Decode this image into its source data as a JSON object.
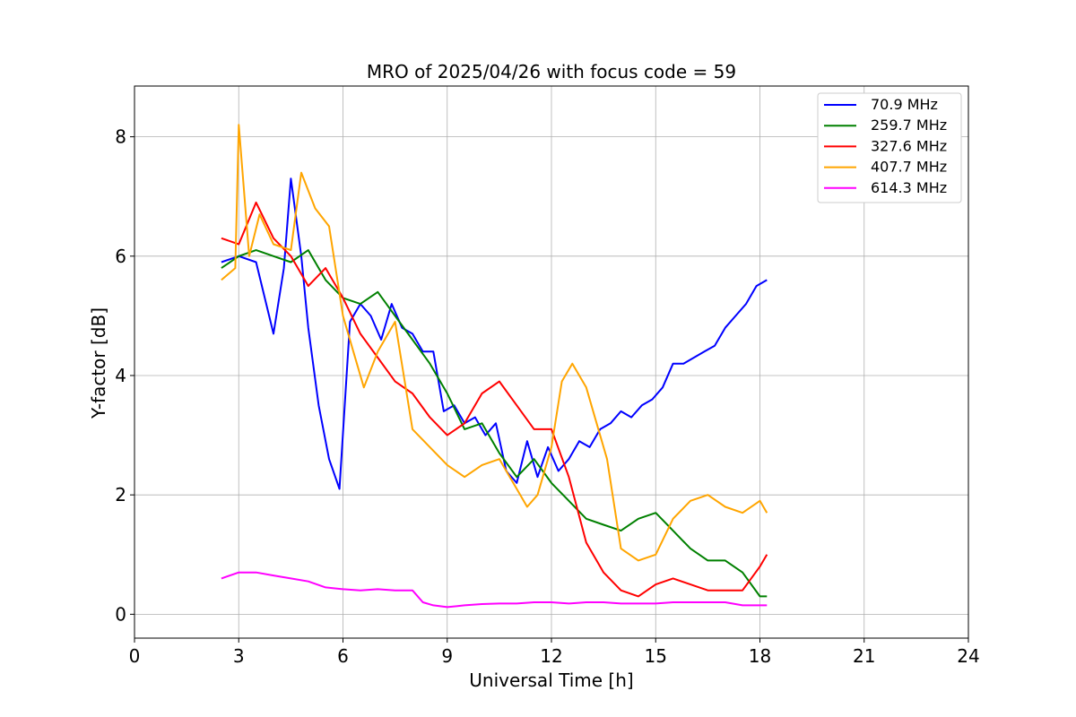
{
  "chart_data": {
    "type": "line",
    "title": "MRO of 2025/04/26 with focus code = 59",
    "xlabel": "Universal Time [h]",
    "ylabel": "Y-factor [dB]",
    "xlim": [
      0,
      24
    ],
    "ylim": [
      -0.4,
      8.85
    ],
    "xticks": [
      0,
      3,
      6,
      9,
      12,
      15,
      18,
      21,
      24
    ],
    "yticks": [
      0,
      2,
      4,
      6,
      8
    ],
    "grid": true,
    "legend_position": "top-right",
    "series": [
      {
        "name": " 70.9 MHz",
        "color": "#0000ff",
        "x": [
          2.5,
          3.0,
          3.5,
          4.0,
          4.3,
          4.5,
          4.8,
          5.0,
          5.3,
          5.6,
          5.9,
          6.2,
          6.5,
          6.8,
          7.1,
          7.4,
          7.7,
          8.0,
          8.3,
          8.6,
          8.9,
          9.2,
          9.5,
          9.8,
          10.1,
          10.4,
          10.7,
          11.0,
          11.3,
          11.6,
          11.9,
          12.2,
          12.5,
          12.8,
          13.1,
          13.4,
          13.7,
          14.0,
          14.3,
          14.6,
          14.9,
          15.2,
          15.5,
          15.8,
          16.1,
          16.4,
          16.7,
          17.0,
          17.3,
          17.6,
          17.9,
          18.2
        ],
        "y": [
          5.9,
          6.0,
          5.9,
          4.7,
          5.8,
          7.3,
          6.0,
          4.8,
          3.5,
          2.6,
          2.1,
          4.9,
          5.2,
          5.0,
          4.6,
          5.2,
          4.8,
          4.7,
          4.4,
          4.4,
          3.4,
          3.5,
          3.2,
          3.3,
          3.0,
          3.2,
          2.4,
          2.2,
          2.9,
          2.3,
          2.8,
          2.4,
          2.6,
          2.9,
          2.8,
          3.1,
          3.2,
          3.4,
          3.3,
          3.5,
          3.6,
          3.8,
          4.2,
          4.2,
          4.3,
          4.4,
          4.5,
          4.8,
          5.0,
          5.2,
          5.5,
          5.6
        ]
      },
      {
        "name": "259.7 MHz",
        "color": "#008000",
        "x": [
          2.5,
          3.0,
          3.5,
          4.0,
          4.5,
          5.0,
          5.5,
          6.0,
          6.5,
          7.0,
          7.5,
          8.0,
          8.5,
          9.0,
          9.5,
          10.0,
          10.5,
          11.0,
          11.5,
          12.0,
          12.5,
          13.0,
          13.5,
          14.0,
          14.5,
          15.0,
          15.5,
          16.0,
          16.5,
          17.0,
          17.5,
          18.0,
          18.2
        ],
        "y": [
          5.8,
          6.0,
          6.1,
          6.0,
          5.9,
          6.1,
          5.6,
          5.3,
          5.2,
          5.4,
          5.0,
          4.6,
          4.2,
          3.7,
          3.1,
          3.2,
          2.7,
          2.3,
          2.6,
          2.2,
          1.9,
          1.6,
          1.5,
          1.4,
          1.6,
          1.7,
          1.4,
          1.1,
          0.9,
          0.9,
          0.7,
          0.3,
          0.3
        ]
      },
      {
        "name": "327.6 MHz",
        "color": "#ff0000",
        "x": [
          2.5,
          3.0,
          3.5,
          4.0,
          4.5,
          5.0,
          5.5,
          6.0,
          6.5,
          7.0,
          7.5,
          8.0,
          8.5,
          9.0,
          9.5,
          10.0,
          10.5,
          11.0,
          11.5,
          12.0,
          12.5,
          13.0,
          13.5,
          14.0,
          14.5,
          15.0,
          15.5,
          16.0,
          16.5,
          17.0,
          17.5,
          18.0,
          18.2
        ],
        "y": [
          6.3,
          6.2,
          6.9,
          6.3,
          6.0,
          5.5,
          5.8,
          5.3,
          4.7,
          4.3,
          3.9,
          3.7,
          3.3,
          3.0,
          3.2,
          3.7,
          3.9,
          3.5,
          3.1,
          3.1,
          2.3,
          1.2,
          0.7,
          0.4,
          0.3,
          0.5,
          0.6,
          0.5,
          0.4,
          0.4,
          0.4,
          0.8,
          1.0
        ]
      },
      {
        "name": "407.7 MHz",
        "color": "#ffa500",
        "x": [
          2.5,
          2.9,
          3.0,
          3.3,
          3.6,
          4.0,
          4.5,
          4.8,
          5.2,
          5.6,
          6.0,
          6.3,
          6.6,
          7.0,
          7.5,
          8.0,
          8.5,
          9.0,
          9.5,
          10.0,
          10.5,
          11.0,
          11.3,
          11.6,
          12.0,
          12.3,
          12.6,
          13.0,
          13.3,
          13.6,
          14.0,
          14.5,
          15.0,
          15.5,
          16.0,
          16.5,
          17.0,
          17.5,
          18.0,
          18.2
        ],
        "y": [
          5.6,
          5.8,
          8.2,
          6.0,
          6.7,
          6.2,
          6.1,
          7.4,
          6.8,
          6.5,
          5.0,
          4.4,
          3.8,
          4.4,
          4.9,
          3.1,
          2.8,
          2.5,
          2.3,
          2.5,
          2.6,
          2.1,
          1.8,
          2.0,
          2.8,
          3.9,
          4.2,
          3.8,
          3.2,
          2.6,
          1.1,
          0.9,
          1.0,
          1.6,
          1.9,
          2.0,
          1.8,
          1.7,
          1.9,
          1.7
        ]
      },
      {
        "name": "614.3 MHz",
        "color": "#ff00ff",
        "x": [
          2.5,
          3.0,
          3.5,
          4.0,
          4.5,
          5.0,
          5.5,
          6.0,
          6.5,
          7.0,
          7.5,
          8.0,
          8.3,
          8.6,
          9.0,
          9.5,
          10.0,
          10.5,
          11.0,
          11.5,
          12.0,
          12.5,
          13.0,
          13.5,
          14.0,
          14.5,
          15.0,
          15.5,
          16.0,
          16.5,
          17.0,
          17.5,
          18.0,
          18.2
        ],
        "y": [
          0.6,
          0.7,
          0.7,
          0.65,
          0.6,
          0.55,
          0.45,
          0.42,
          0.4,
          0.42,
          0.4,
          0.4,
          0.2,
          0.15,
          0.12,
          0.15,
          0.17,
          0.18,
          0.18,
          0.2,
          0.2,
          0.18,
          0.2,
          0.2,
          0.18,
          0.18,
          0.18,
          0.2,
          0.2,
          0.2,
          0.2,
          0.15,
          0.15,
          0.15
        ]
      }
    ]
  }
}
